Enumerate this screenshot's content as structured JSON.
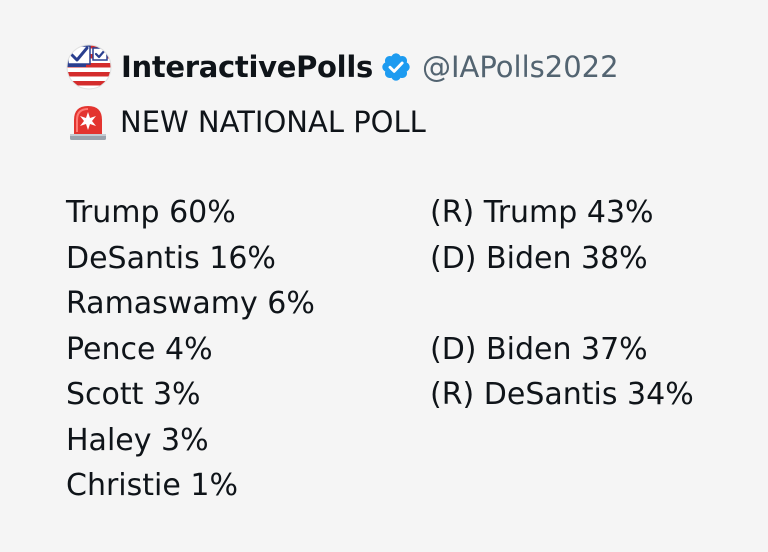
{
  "account": {
    "display_name": "InteractivePolls",
    "handle": "@IAPolls2022",
    "avatar_icon": "flag-ballot-icon",
    "verified_icon": "verified-badge-icon",
    "verified_color": "#1d9bf0"
  },
  "post": {
    "headline_icon": "rotating-light-siren-icon",
    "headline": "NEW NATIONAL POLL",
    "primary_results": [
      "Trump 60%",
      "DeSantis 16%",
      "Ramaswamy 6%",
      "Pence 4%",
      "Scott 3%",
      "Haley 3%",
      "Christie 1%"
    ],
    "general_matchups": [
      [
        "(R) Trump 43%",
        "(D) Biden 38%"
      ],
      [
        "(D) Biden 37%",
        "(R) DeSantis 34%"
      ]
    ]
  }
}
